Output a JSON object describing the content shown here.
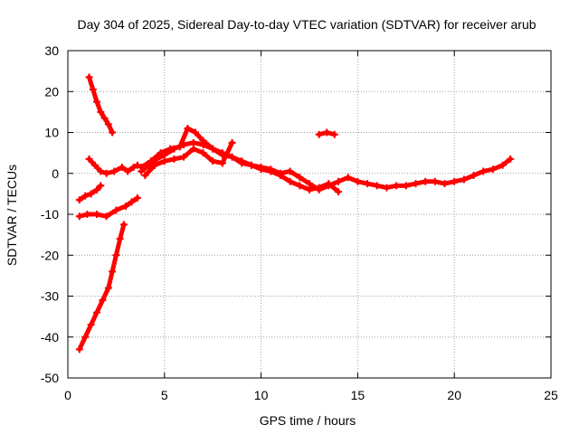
{
  "chart_data": {
    "type": "scatter",
    "title": "Day 304 of 2025, Sidereal Day-to-day VTEC variation (SDTVAR) for receiver arub",
    "xlabel": "GPS time / hours",
    "ylabel": "SDTVAR / TECUs",
    "xlim": [
      0,
      25
    ],
    "ylim": [
      -50,
      30
    ],
    "xticks": [
      0,
      5,
      10,
      15,
      20,
      25
    ],
    "yticks": [
      -50,
      -40,
      -30,
      -20,
      -10,
      0,
      10,
      20,
      30
    ],
    "grid": true,
    "marker_color": "#ff0000",
    "series": [
      {
        "name": "arc-1",
        "points": [
          [
            1.1,
            23.5
          ],
          [
            1.3,
            20.5
          ],
          [
            1.5,
            17.5
          ],
          [
            1.7,
            15.0
          ],
          [
            1.9,
            13.5
          ],
          [
            2.1,
            12.0
          ],
          [
            2.3,
            10.0
          ]
        ]
      },
      {
        "name": "arc-2",
        "points": [
          [
            1.1,
            3.5
          ],
          [
            1.4,
            2.0
          ],
          [
            1.7,
            0.5
          ],
          [
            2.0,
            0.0
          ],
          [
            2.4,
            0.5
          ],
          [
            2.8,
            1.5
          ],
          [
            3.1,
            0.5
          ],
          [
            3.4,
            1.5
          ],
          [
            3.6,
            2.0
          ]
        ]
      },
      {
        "name": "arc-3",
        "points": [
          [
            0.6,
            -6.5
          ],
          [
            0.9,
            -5.5
          ],
          [
            1.2,
            -5.0
          ],
          [
            1.5,
            -4.0
          ],
          [
            1.7,
            -3.0
          ]
        ]
      },
      {
        "name": "arc-4",
        "points": [
          [
            0.6,
            -10.5
          ],
          [
            1.0,
            -10.0
          ],
          [
            1.5,
            -10.0
          ],
          [
            2.0,
            -10.5
          ],
          [
            2.5,
            -9.0
          ],
          [
            3.0,
            -8.0
          ],
          [
            3.3,
            -7.0
          ],
          [
            3.6,
            -6.0
          ]
        ]
      },
      {
        "name": "arc-5",
        "points": [
          [
            0.6,
            -43.0
          ],
          [
            0.9,
            -40.0
          ],
          [
            1.2,
            -37.0
          ],
          [
            1.5,
            -34.0
          ],
          [
            1.8,
            -31.0
          ],
          [
            2.1,
            -28.0
          ],
          [
            2.3,
            -24.0
          ],
          [
            2.5,
            -20.0
          ],
          [
            2.7,
            -16.0
          ],
          [
            2.9,
            -12.5
          ]
        ]
      },
      {
        "name": "arc-6",
        "points": [
          [
            3.8,
            0.5
          ],
          [
            4.2,
            2.0
          ],
          [
            4.6,
            3.5
          ],
          [
            5.0,
            4.5
          ],
          [
            5.5,
            6.0
          ],
          [
            6.0,
            7.0
          ],
          [
            6.5,
            7.5
          ],
          [
            7.0,
            7.0
          ],
          [
            7.5,
            6.0
          ],
          [
            8.0,
            4.5
          ],
          [
            8.5,
            4.0
          ],
          [
            9.0,
            3.0
          ],
          [
            9.5,
            2.0
          ],
          [
            10.0,
            1.5
          ],
          [
            10.5,
            1.0
          ],
          [
            11.0,
            0.0
          ],
          [
            11.5,
            0.5
          ],
          [
            12.0,
            -1.0
          ],
          [
            12.5,
            -2.5
          ],
          [
            13.0,
            -4.0
          ],
          [
            13.5,
            -3.0
          ],
          [
            14.0,
            -2.0
          ],
          [
            14.5,
            -1.0
          ],
          [
            15.0,
            -2.0
          ],
          [
            15.5,
            -2.5
          ],
          [
            16.0,
            -3.0
          ],
          [
            16.5,
            -3.5
          ],
          [
            17.0,
            -3.0
          ],
          [
            17.5,
            -3.0
          ],
          [
            18.0,
            -2.5
          ],
          [
            18.5,
            -2.0
          ],
          [
            19.0,
            -2.0
          ],
          [
            19.5,
            -2.5
          ],
          [
            20.0,
            -2.0
          ],
          [
            20.5,
            -1.5
          ],
          [
            21.0,
            -0.5
          ],
          [
            21.5,
            0.5
          ],
          [
            22.0,
            1.0
          ],
          [
            22.5,
            2.0
          ],
          [
            22.9,
            3.5
          ]
        ]
      },
      {
        "name": "arc-7",
        "points": [
          [
            3.8,
            1.5
          ],
          [
            4.3,
            3.0
          ],
          [
            4.8,
            5.0
          ],
          [
            5.3,
            6.0
          ],
          [
            5.8,
            6.5
          ],
          [
            6.2,
            11.0
          ],
          [
            6.6,
            10.0
          ],
          [
            7.0,
            8.0
          ],
          [
            7.5,
            6.0
          ],
          [
            8.0,
            5.0
          ],
          [
            8.5,
            4.0
          ],
          [
            9.0,
            2.5
          ],
          [
            9.5,
            2.0
          ],
          [
            10.0,
            1.0
          ],
          [
            10.5,
            0.5
          ],
          [
            11.0,
            -0.5
          ],
          [
            11.5,
            -2.0
          ],
          [
            12.0,
            -3.0
          ],
          [
            12.5,
            -4.0
          ],
          [
            13.0,
            -3.5
          ],
          [
            13.5,
            -2.5
          ],
          [
            14.0,
            -4.5
          ]
        ]
      },
      {
        "name": "arc-8",
        "points": [
          [
            4.0,
            -0.5
          ],
          [
            4.5,
            2.0
          ],
          [
            5.0,
            3.0
          ],
          [
            5.5,
            3.5
          ],
          [
            6.0,
            4.0
          ],
          [
            6.5,
            6.0
          ],
          [
            7.0,
            5.0
          ],
          [
            7.5,
            3.0
          ],
          [
            8.0,
            2.5
          ],
          [
            8.5,
            7.5
          ]
        ]
      },
      {
        "name": "arc-9",
        "points": [
          [
            13.0,
            9.5
          ],
          [
            13.4,
            10.0
          ],
          [
            13.8,
            9.5
          ]
        ]
      }
    ]
  }
}
